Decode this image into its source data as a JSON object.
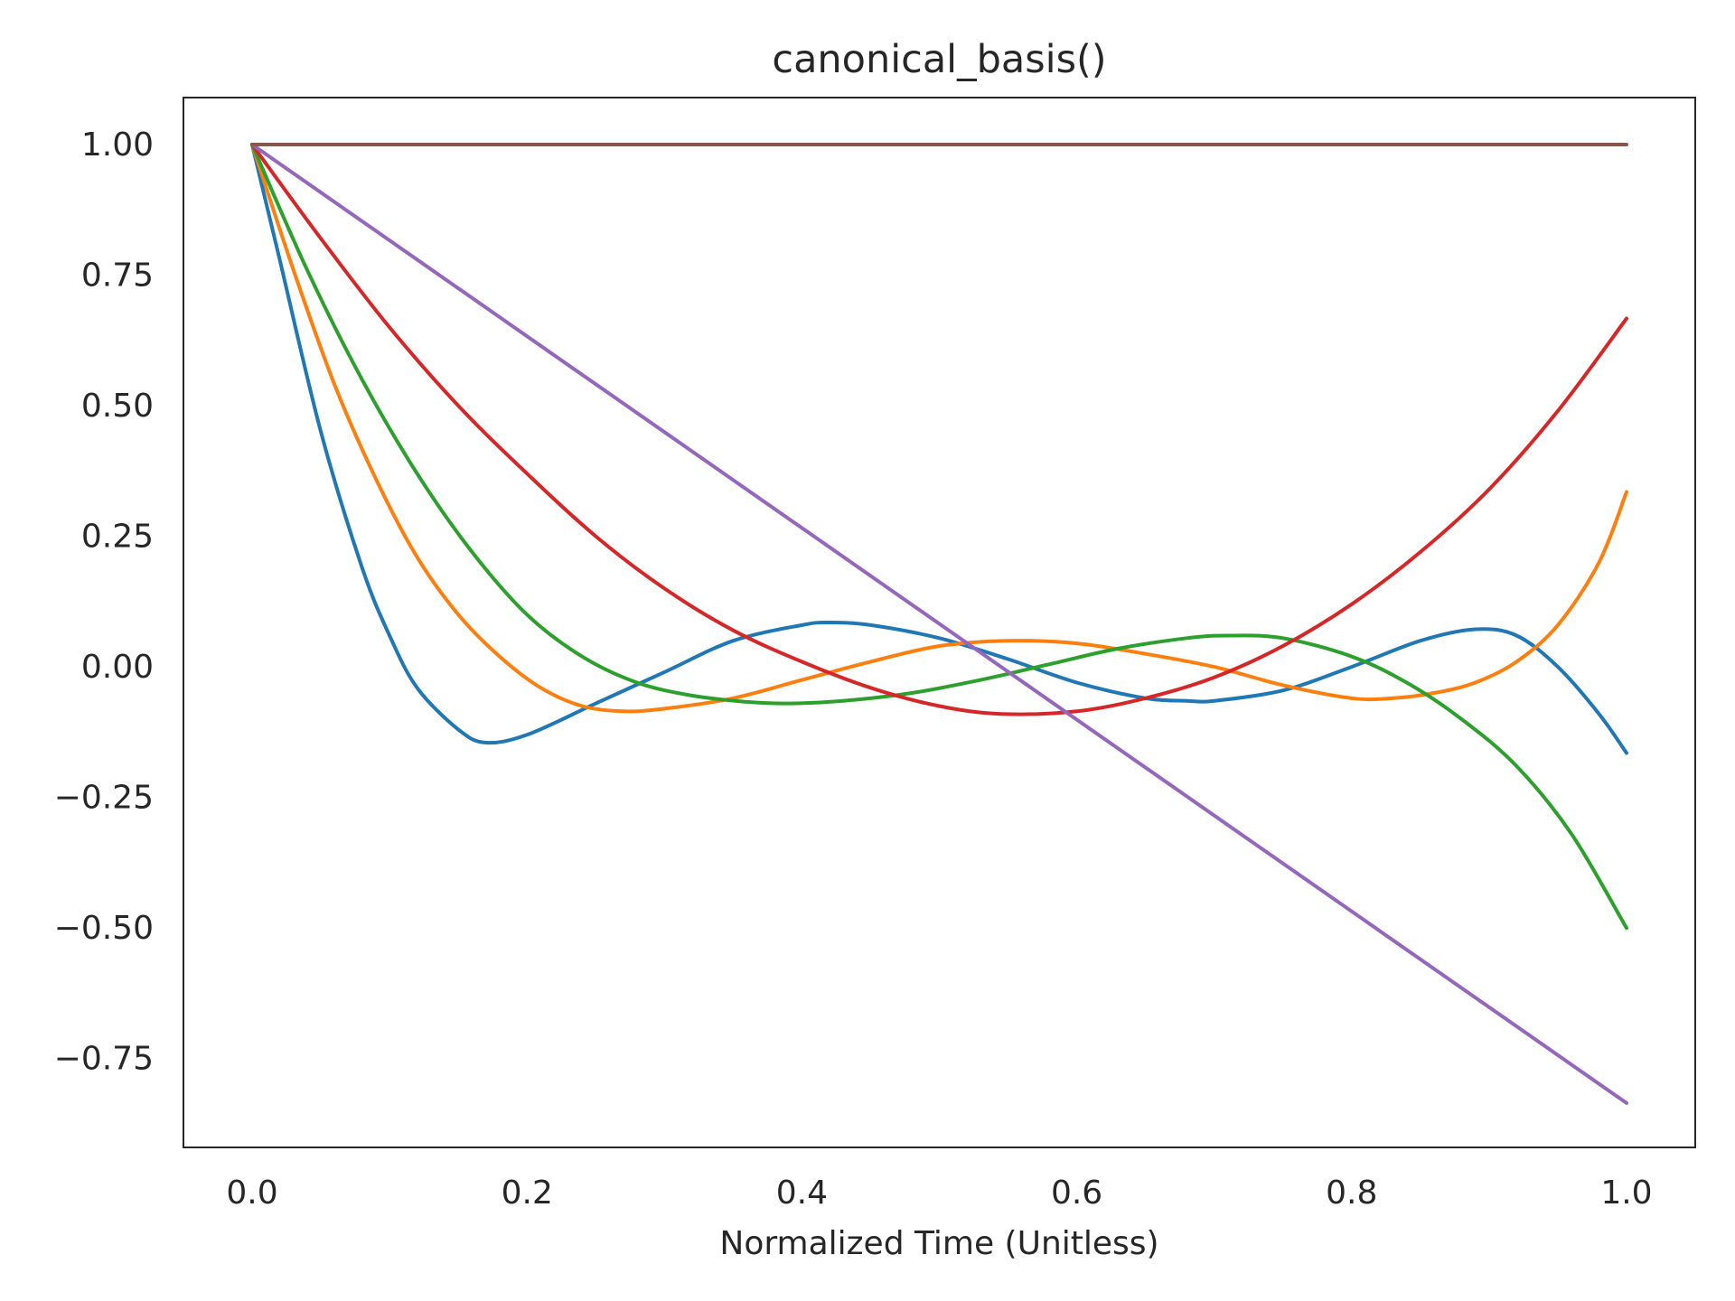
{
  "chart_data": {
    "type": "line",
    "title": "canonical_basis()",
    "xlabel": "Normalized Time (Unitless)",
    "ylabel": "",
    "xlim": [
      -0.05,
      1.05
    ],
    "ylim": [
      -0.92,
      1.09
    ],
    "grid": false,
    "legend": "none",
    "xticks": [
      0.0,
      0.2,
      0.4,
      0.6,
      0.8,
      1.0
    ],
    "xtick_labels": [
      "0.0",
      "0.2",
      "0.4",
      "0.6",
      "0.8",
      "1.0"
    ],
    "yticks": [
      1.0,
      0.75,
      0.5,
      0.25,
      0.0,
      -0.25,
      -0.5,
      -0.75
    ],
    "ytick_labels": [
      "1.00",
      "0.75",
      "0.50",
      "0.25",
      "0.00",
      "−0.25",
      "−0.50",
      "−0.75"
    ],
    "series": [
      {
        "color": "#1f77b4",
        "x": [
          0.0,
          0.02,
          0.05,
          0.08,
          0.1,
          0.12,
          0.15,
          0.17,
          0.2,
          0.25,
          0.3,
          0.35,
          0.4,
          0.42,
          0.45,
          0.5,
          0.55,
          0.6,
          0.65,
          0.68,
          0.7,
          0.75,
          0.8,
          0.85,
          0.89,
          0.92,
          0.95,
          0.98,
          1.0
        ],
        "y": [
          1.0,
          0.78,
          0.45,
          0.19,
          0.06,
          -0.04,
          -0.12,
          -0.145,
          -0.13,
          -0.07,
          -0.01,
          0.05,
          0.08,
          0.085,
          0.08,
          0.055,
          0.015,
          -0.03,
          -0.06,
          -0.065,
          -0.065,
          -0.045,
          0.0,
          0.05,
          0.072,
          0.06,
          0.0,
          -0.09,
          -0.165
        ]
      },
      {
        "color": "#ff7f0e",
        "x": [
          0.0,
          0.03,
          0.06,
          0.09,
          0.12,
          0.15,
          0.18,
          0.21,
          0.24,
          0.27,
          0.3,
          0.35,
          0.4,
          0.45,
          0.5,
          0.55,
          0.6,
          0.65,
          0.7,
          0.75,
          0.8,
          0.83,
          0.86,
          0.89,
          0.92,
          0.95,
          0.98,
          1.0
        ],
        "y": [
          1.0,
          0.76,
          0.54,
          0.36,
          0.21,
          0.1,
          0.02,
          -0.04,
          -0.075,
          -0.085,
          -0.08,
          -0.06,
          -0.025,
          0.01,
          0.04,
          0.05,
          0.045,
          0.025,
          0.0,
          -0.035,
          -0.06,
          -0.06,
          -0.05,
          -0.03,
          0.01,
          0.08,
          0.2,
          0.335
        ]
      },
      {
        "color": "#2ca02c",
        "x": [
          0.0,
          0.04,
          0.08,
          0.12,
          0.16,
          0.2,
          0.24,
          0.28,
          0.32,
          0.36,
          0.39,
          0.43,
          0.48,
          0.53,
          0.58,
          0.63,
          0.68,
          0.71,
          0.75,
          0.8,
          0.84,
          0.88,
          0.92,
          0.96,
          1.0
        ],
        "y": [
          1.0,
          0.76,
          0.55,
          0.37,
          0.22,
          0.1,
          0.02,
          -0.03,
          -0.055,
          -0.067,
          -0.07,
          -0.065,
          -0.05,
          -0.025,
          0.005,
          0.035,
          0.055,
          0.06,
          0.055,
          0.02,
          -0.03,
          -0.1,
          -0.19,
          -0.32,
          -0.5
        ]
      },
      {
        "color": "#d62728",
        "x": [
          0.0,
          0.05,
          0.1,
          0.15,
          0.2,
          0.25,
          0.3,
          0.35,
          0.4,
          0.45,
          0.5,
          0.545,
          0.6,
          0.65,
          0.7,
          0.75,
          0.8,
          0.85,
          0.9,
          0.95,
          1.0
        ],
        "y": [
          1.0,
          0.82,
          0.65,
          0.5,
          0.37,
          0.25,
          0.15,
          0.07,
          0.01,
          -0.04,
          -0.075,
          -0.09,
          -0.085,
          -0.06,
          -0.02,
          0.04,
          0.12,
          0.22,
          0.34,
          0.49,
          0.667
        ]
      },
      {
        "color": "#9467bd",
        "x": [
          0.0,
          1.0
        ],
        "y": [
          1.0,
          -0.835
        ]
      },
      {
        "color": "#8c564b",
        "x": [
          0.0,
          1.0
        ],
        "y": [
          1.0,
          1.0
        ]
      }
    ]
  }
}
